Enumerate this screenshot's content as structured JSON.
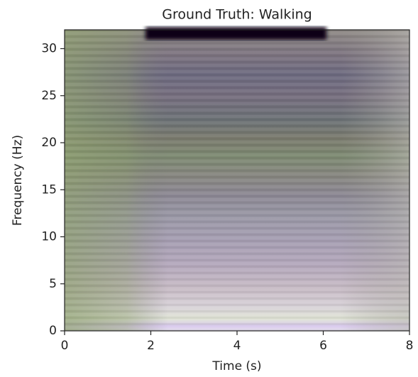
{
  "chart_data": {
    "type": "image",
    "title": "Ground Truth: Walking",
    "xlabel": "Time (s)",
    "ylabel": "Frequency (Hz)",
    "xlim": [
      0,
      8
    ],
    "xticks": [
      0,
      2,
      4,
      6,
      8
    ],
    "ylim": [
      0,
      32
    ],
    "yticks": [
      0,
      5,
      10,
      15,
      20,
      25,
      30
    ]
  }
}
